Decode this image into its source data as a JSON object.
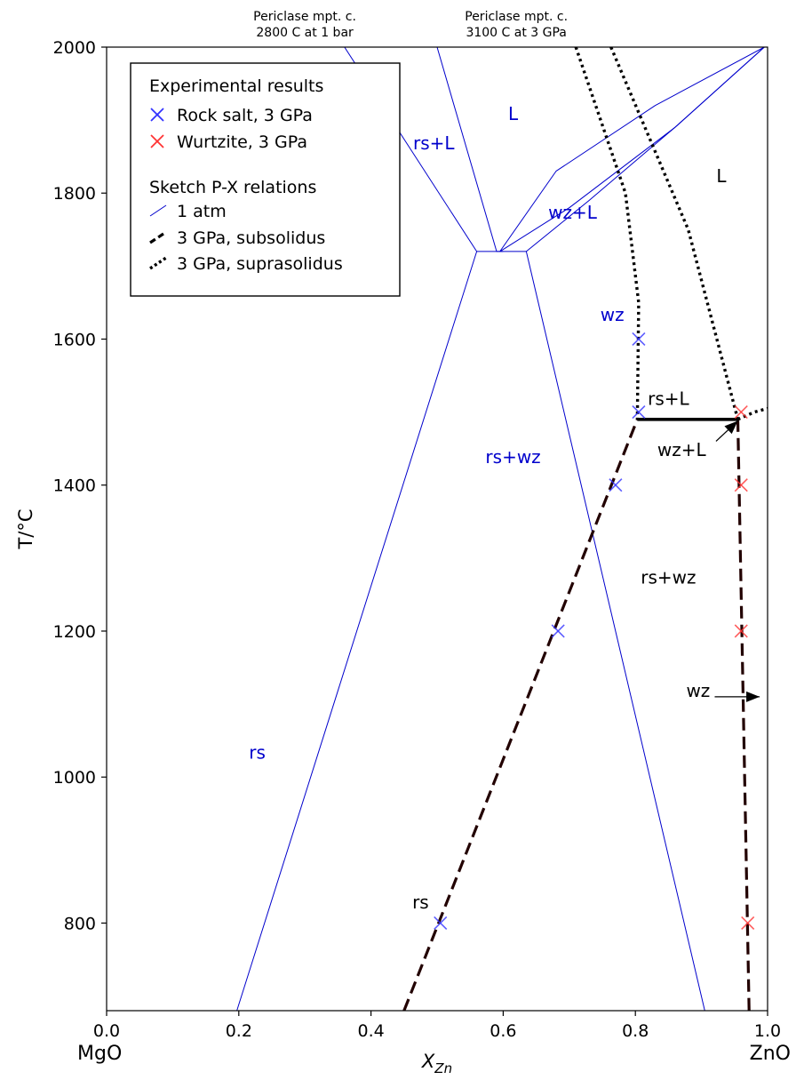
{
  "chart_data": {
    "type": "line",
    "xlabel_main": "X",
    "xlabel_sub": "Zn",
    "ylabel": "T/°C",
    "xlim": [
      0.0,
      1.0
    ],
    "ylim": [
      680,
      2000
    ],
    "x_ticks": [
      0.0,
      0.2,
      0.4,
      0.6,
      0.8,
      1.0
    ],
    "x_tick_labels": [
      "0.0",
      "0.2",
      "0.4",
      "0.6",
      "0.8",
      "1.0"
    ],
    "y_ticks": [
      800,
      1000,
      1200,
      1400,
      1600,
      1800,
      2000
    ],
    "y_tick_labels": [
      "800",
      "1000",
      "1200",
      "1400",
      "1600",
      "1800",
      "2000"
    ],
    "x_end_labels": {
      "left": "MgO",
      "right": "ZnO"
    },
    "top_notes": [
      {
        "lines": [
          "Periclase mpt. c.",
          "2800 C at 1 bar"
        ],
        "x": 0.32
      },
      {
        "lines": [
          "Periclase mpt. c.",
          "3100 C at 3 GPa"
        ],
        "x": 0.64
      }
    ],
    "colors": {
      "blue": "#0000cc",
      "red": "#ff0000",
      "black": "#000000",
      "dark_dashed": "#220000"
    },
    "series": [
      {
        "name": "Rock salt, 3 GPa",
        "kind": "scatter",
        "marker": "x",
        "color": "#3333ff",
        "x": [
          0.505,
          0.683,
          0.77,
          0.805,
          0.805
        ],
        "y": [
          800,
          1200,
          1400,
          1500,
          1600
        ]
      },
      {
        "name": "Wurtzite, 3 GPa",
        "kind": "scatter",
        "marker": "x",
        "color": "#ff3333",
        "x": [
          0.97,
          0.96,
          0.96,
          0.96
        ],
        "y": [
          800,
          1200,
          1400,
          1500
        ]
      },
      {
        "name": "1 atm",
        "kind": "line",
        "style": "thin",
        "color": "#0000cc",
        "segments": [
          [
            [
              0.197,
              680
            ],
            [
              0.56,
              1720
            ],
            [
              0.635,
              1720
            ],
            [
              0.905,
              680
            ]
          ],
          [
            [
              0.36,
              2000
            ],
            [
              0.56,
              1720
            ]
          ],
          [
            [
              0.5,
              2000
            ],
            [
              0.59,
              1720
            ],
            [
              0.6,
              1720
            ]
          ],
          [
            [
              0.595,
              1720
            ],
            [
              0.7,
              1780
            ],
            [
              0.86,
              1890
            ],
            [
              0.995,
              2000
            ]
          ],
          [
            [
              0.635,
              1720
            ],
            [
              0.73,
              1790
            ],
            [
              0.86,
              1890
            ],
            [
              0.995,
              2000
            ]
          ],
          [
            [
              0.595,
              1720
            ],
            [
              0.68,
              1830
            ],
            [
              0.83,
              1920
            ],
            [
              0.995,
              2000
            ]
          ]
        ]
      },
      {
        "name": "3 GPa, subsolidus",
        "kind": "line",
        "style": "dashed",
        "color": "#220000",
        "segments": [
          [
            [
              0.45,
              680
            ],
            [
              0.803,
              1490
            ]
          ],
          [
            [
              0.955,
              1490
            ],
            [
              0.972,
              680
            ]
          ]
        ]
      },
      {
        "name": "3 GPa, suprasolidus",
        "kind": "line",
        "style": "dotted",
        "color": "#000000",
        "segments": [
          [
            [
              0.71,
              2000
            ],
            [
              0.785,
              1800
            ],
            [
              0.805,
              1650
            ],
            [
              0.803,
              1490
            ]
          ],
          [
            [
              0.763,
              2000
            ],
            [
              0.88,
              1750
            ],
            [
              0.955,
              1490
            ]
          ],
          [
            [
              0.955,
              1490
            ],
            [
              0.98,
              1500
            ],
            [
              1.0,
              1505
            ]
          ]
        ]
      },
      {
        "name": "solidus tie-line",
        "kind": "line",
        "style": "solid",
        "color": "#000000",
        "segments": [
          [
            [
              0.803,
              1490
            ],
            [
              0.955,
              1490
            ]
          ]
        ]
      }
    ],
    "region_labels": [
      {
        "text": "L",
        "x": 0.615,
        "y": 1900,
        "color": "#0000cc"
      },
      {
        "text": "rs+L",
        "x": 0.495,
        "y": 1860,
        "color": "#0000cc"
      },
      {
        "text": "wz+L",
        "x": 0.705,
        "y": 1765,
        "color": "#0000cc"
      },
      {
        "text": "L",
        "x": 0.93,
        "y": 1815,
        "color": "#000000"
      },
      {
        "text": "wz",
        "x": 0.765,
        "y": 1625,
        "color": "#0000cc"
      },
      {
        "text": "rs+L",
        "x": 0.85,
        "y": 1510,
        "color": "#000000"
      },
      {
        "text": "rs+wz",
        "x": 0.615,
        "y": 1430,
        "color": "#0000cc"
      },
      {
        "text": "wz+L",
        "x": 0.87,
        "y": 1440,
        "color": "#000000"
      },
      {
        "text": "rs+wz",
        "x": 0.85,
        "y": 1265,
        "color": "#000000"
      },
      {
        "text": "wz",
        "x": 0.895,
        "y": 1110,
        "color": "#000000"
      },
      {
        "text": "rs",
        "x": 0.228,
        "y": 1025,
        "color": "#0000cc"
      },
      {
        "text": "rs",
        "x": 0.475,
        "y": 820,
        "color": "#000000"
      }
    ],
    "arrows": [
      {
        "from": [
          0.92,
          1110
        ],
        "to": [
          0.988,
          1110
        ]
      },
      {
        "from": [
          0.922,
          1460
        ],
        "to": [
          0.955,
          1488
        ]
      }
    ],
    "legend": {
      "placement": "top-left",
      "title": "Experimental results",
      "title2": "Sketch P-X relations",
      "items": [
        {
          "label": "Rock salt, 3 GPa",
          "marker": "x",
          "color": "#3333ff"
        },
        {
          "label": "Wurtzite, 3 GPa",
          "marker": "x",
          "color": "#ff3333"
        },
        {
          "label": "1 atm",
          "line": "thin",
          "color": "#0000cc"
        },
        {
          "label": "3 GPa, subsolidus",
          "line": "dashed",
          "color": "#000000"
        },
        {
          "label": "3 GPa, suprasolidus",
          "line": "dotted",
          "color": "#000000"
        }
      ]
    }
  }
}
